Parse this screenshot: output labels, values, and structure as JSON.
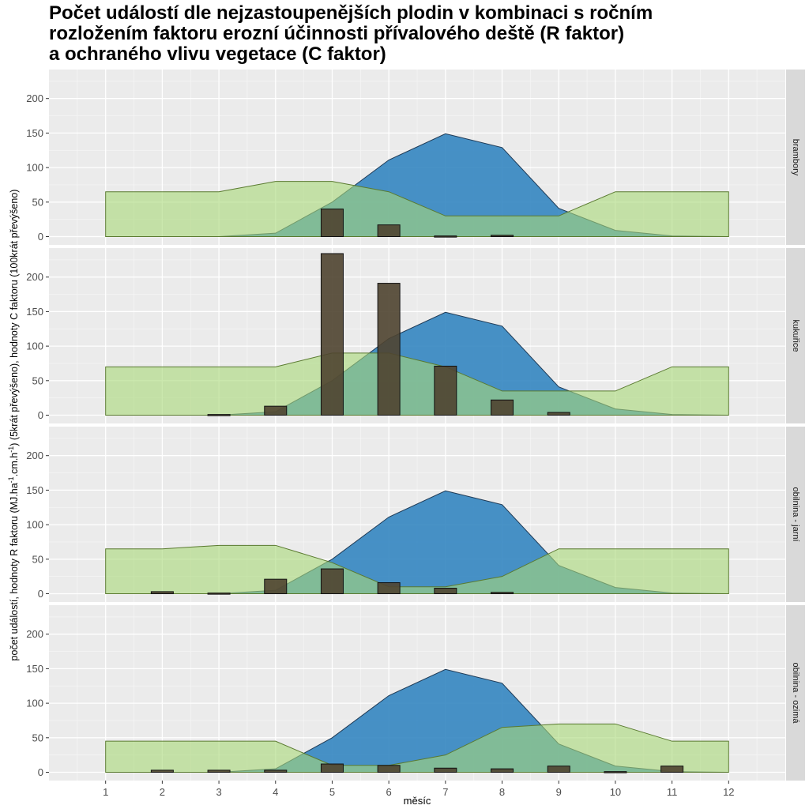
{
  "chart_data": {
    "type": "area",
    "title_lines": [
      "Počet událostí dle nejzastoupenějších plodin v kombinaci s ročním",
      "rozložením faktoru erozní účinnosti přívalového deště (R faktor)",
      "a ochraného vlivu vegetace (C faktor)"
    ],
    "xlabel": "měsíc",
    "ylabel_parts": {
      "main": "počet událostí, hodnoty R faktoru (MJ.ha",
      "sup1": "-1",
      "mid": ".cm.h",
      "sup2": "-1",
      "end": ") (5krát převýšeno), hodnoty C faktoru (100krát převýšeno)"
    },
    "x_ticks": [
      1,
      2,
      3,
      4,
      5,
      6,
      7,
      8,
      9,
      10,
      11,
      12
    ],
    "y_ticks": [
      0,
      50,
      100,
      150,
      200
    ],
    "xlim": [
      0,
      13
    ],
    "ylim": [
      -12,
      242
    ],
    "colors": {
      "r_fill": "#2f83bf",
      "r_stroke": "#1f3a55",
      "c_fill": "#a8d878",
      "c_stroke": "#5a7a30",
      "bar_fill": "#4f4430",
      "bar_stroke": "#111111",
      "panel_bg": "#ebebeb",
      "strip_bg": "#d9d9d9"
    },
    "r_factor": [
      0,
      0,
      0,
      5,
      50,
      111,
      149,
      129,
      41,
      9,
      1,
      0
    ],
    "panels": [
      {
        "name": "brambory",
        "c_factor": [
          65,
          65,
          65,
          80,
          80,
          65,
          30,
          30,
          30,
          65,
          65,
          65
        ],
        "events": [
          0,
          0,
          0,
          0,
          40,
          17,
          1,
          2,
          0,
          0,
          0,
          0
        ]
      },
      {
        "name": "kukuřice",
        "c_factor": [
          70,
          70,
          70,
          70,
          90,
          90,
          70,
          35,
          35,
          35,
          70,
          70
        ],
        "events": [
          0,
          0,
          1,
          13,
          234,
          191,
          71,
          22,
          4,
          0,
          0,
          0
        ]
      },
      {
        "name": "obilnina - jarní",
        "c_factor": [
          65,
          65,
          70,
          70,
          45,
          10,
          10,
          25,
          65,
          65,
          65,
          65
        ],
        "events": [
          0,
          3,
          1,
          21,
          36,
          16,
          8,
          2,
          0,
          0,
          0,
          0
        ]
      },
      {
        "name": "obilnina - ozimá",
        "c_factor": [
          45,
          45,
          45,
          45,
          10,
          10,
          25,
          65,
          70,
          70,
          45,
          45
        ],
        "events": [
          0,
          3,
          3,
          3,
          12,
          10,
          6,
          5,
          9,
          1,
          9,
          0
        ]
      }
    ]
  }
}
